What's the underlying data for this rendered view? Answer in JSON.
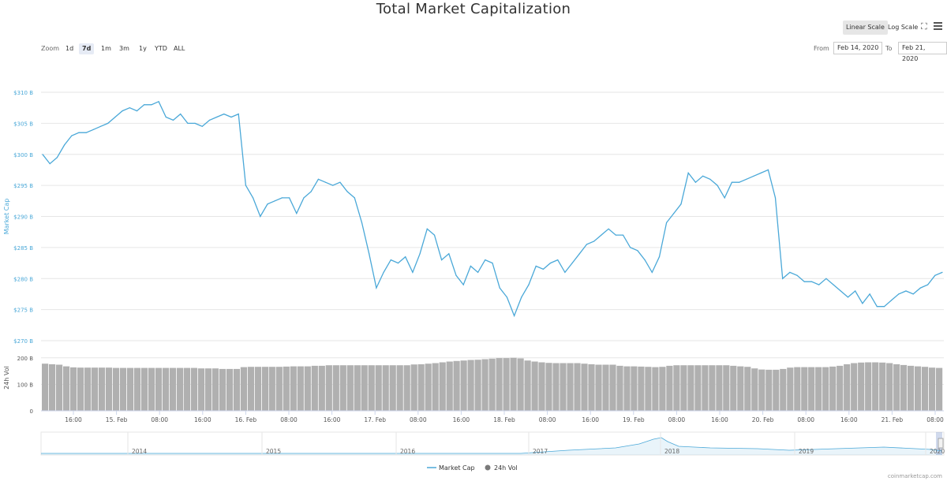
{
  "chart_data": {
    "type": "line",
    "title": "Total Market Capitalization",
    "ylabel": "Market Cap",
    "ylim": [
      270,
      310
    ],
    "y_ticks": [
      270,
      275,
      280,
      285,
      290,
      295,
      300,
      305,
      310
    ],
    "y_tick_labels": [
      "$270 B",
      "$275 B",
      "$280 B",
      "$285 B",
      "$290 B",
      "$295 B",
      "$300 B",
      "$305 B",
      "$310 B"
    ],
    "x_tick_labels": [
      "16:00",
      "15. Feb",
      "08:00",
      "16:00",
      "16. Feb",
      "08:00",
      "16:00",
      "17. Feb",
      "08:00",
      "16:00",
      "18. Feb",
      "08:00",
      "16:00",
      "19. Feb",
      "08:00",
      "16:00",
      "20. Feb",
      "08:00",
      "16:00",
      "21. Feb",
      "08:00"
    ],
    "series": [
      {
        "name": "Market Cap",
        "color": "#4aa8d8",
        "values": [
          300.0,
          298.5,
          299.5,
          301.5,
          303.0,
          303.5,
          303.5,
          304.0,
          304.5,
          305.0,
          306.0,
          307.0,
          307.5,
          307.0,
          308.0,
          308.0,
          308.5,
          306.0,
          305.5,
          306.5,
          305.0,
          305.0,
          304.5,
          305.5,
          306.0,
          306.5,
          306.0,
          306.5,
          295.0,
          293.0,
          290.0,
          292.0,
          292.5,
          293.0,
          293.0,
          290.5,
          293.0,
          294.0,
          296.0,
          295.5,
          295.0,
          295.5,
          294.0,
          293.0,
          289.0,
          284.0,
          278.5,
          281.0,
          283.0,
          282.5,
          283.5,
          281.0,
          284.0,
          288.0,
          287.0,
          283.0,
          284.0,
          280.5,
          279.0,
          282.0,
          281.0,
          283.0,
          282.5,
          278.5,
          277.0,
          274.0,
          277.0,
          279.0,
          282.0,
          281.5,
          282.5,
          283.0,
          281.0,
          282.5,
          284.0,
          285.5,
          286.0,
          287.0,
          288.0,
          287.0,
          287.0,
          285.0,
          284.5,
          283.0,
          281.0,
          283.5,
          289.0,
          290.5,
          292.0,
          297.0,
          295.5,
          296.5,
          296.0,
          295.0,
          293.0,
          295.5,
          295.5,
          296.0,
          296.5,
          297.0,
          297.5,
          293.0,
          280.0,
          281.0,
          280.5,
          279.5,
          279.5,
          279.0,
          280.0,
          279.0,
          278.0,
          277.0,
          278.0,
          276.0,
          277.5,
          275.5,
          275.5,
          276.5,
          277.5,
          278.0,
          277.5,
          278.5,
          279.0,
          280.5,
          281.0
        ]
      },
      {
        "name": "24h Vol",
        "color": "#7a7a7a",
        "values": [
          178,
          176,
          174,
          168,
          164,
          163,
          163,
          163,
          163,
          163,
          162,
          162,
          162,
          162,
          162,
          162,
          162,
          162,
          162,
          162,
          162,
          162,
          160,
          160,
          160,
          158,
          158,
          158,
          165,
          166,
          166,
          166,
          166,
          166,
          167,
          168,
          168,
          168,
          170,
          170,
          172,
          172,
          172,
          172,
          172,
          172,
          172,
          172,
          172,
          172,
          172,
          172,
          175,
          176,
          178,
          180,
          183,
          186,
          188,
          190,
          192,
          193,
          195,
          197,
          199,
          199,
          200,
          198,
          190,
          186,
          183,
          181,
          180,
          180,
          180,
          180,
          178,
          176,
          174,
          174,
          174,
          170,
          168,
          168,
          167,
          166,
          165,
          166,
          170,
          172,
          172,
          172,
          172,
          172,
          172,
          172,
          172,
          170,
          168,
          166,
          160,
          156,
          155,
          155,
          158,
          163,
          165,
          165,
          165,
          165,
          165,
          167,
          170,
          176,
          180,
          182,
          183,
          183,
          182,
          180,
          176,
          173,
          170,
          168,
          166,
          163,
          162
        ]
      }
    ],
    "vol_ylim": [
      0,
      250
    ],
    "vol_y_ticks": [
      0,
      100,
      200
    ],
    "vol_y_tick_labels": [
      "0",
      "100 B",
      "200 B"
    ],
    "vol_ylabel": "24h Vol",
    "navigator_labels": [
      "2014",
      "2015",
      "2016",
      "2017",
      "2018",
      "2019",
      "2020"
    ],
    "legend": [
      "Market Cap",
      "24h Vol"
    ],
    "legend_position": "bottom-center",
    "grid": true
  },
  "toolbar": {
    "linear_scale": "Linear Scale",
    "log_scale": "Log Scale",
    "zoom_label": "Zoom",
    "zoom_options": [
      "1d",
      "7d",
      "1m",
      "3m",
      "1y",
      "YTD",
      "ALL"
    ],
    "zoom_selected": "7d",
    "from_label": "From",
    "from_value": "Feb 14, 2020",
    "to_label": "To",
    "to_value": "Feb 21, 2020"
  },
  "credit": "coinmarketcap.com",
  "colors": {
    "line": "#4aa8d8",
    "volume": "#b0b0b0",
    "grid": "#e6e6e6",
    "axis_text": "#4aa8d8"
  }
}
